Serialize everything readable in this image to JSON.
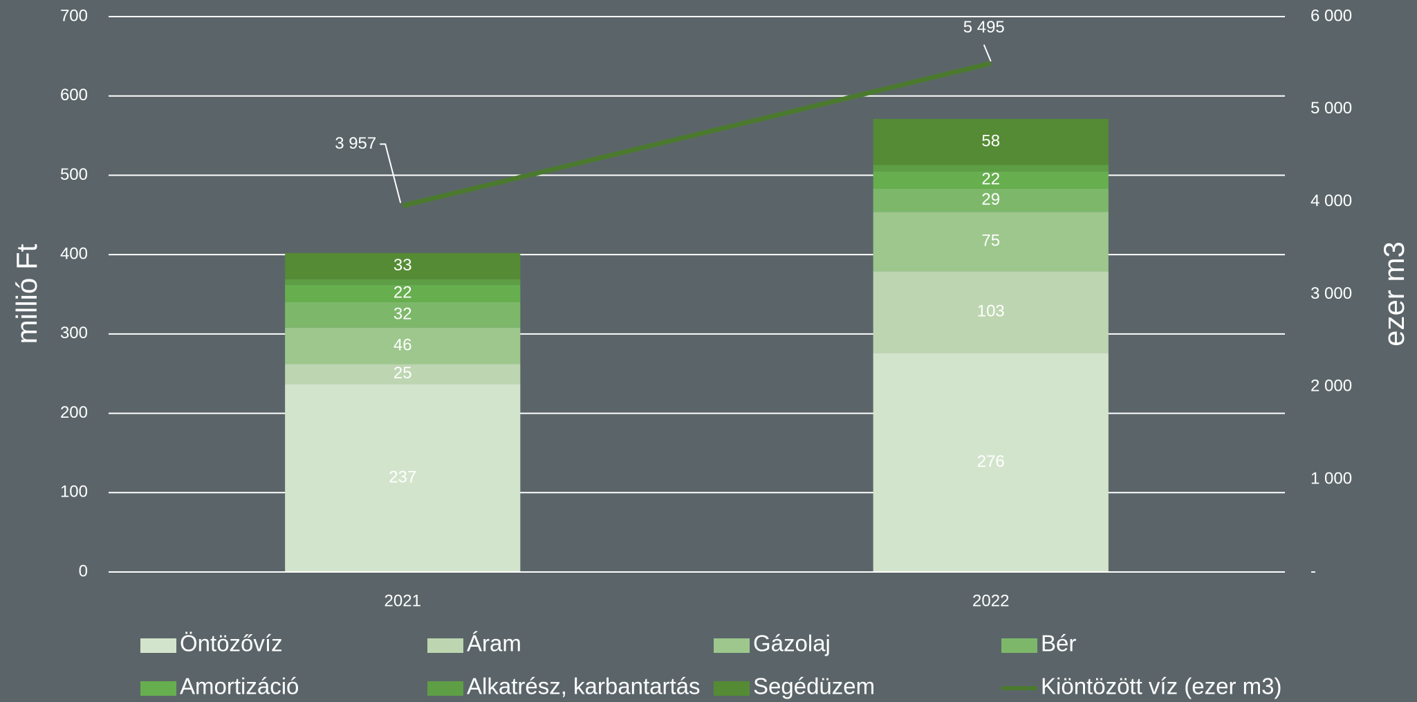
{
  "chart_data": {
    "type": "stacked_bar_line",
    "categories": [
      "2021",
      "2022"
    ],
    "y_label": "millió Ft",
    "y2_label": "ezer m3",
    "ylim": [
      0,
      700
    ],
    "yticks": [
      0,
      100,
      200,
      300,
      400,
      500,
      600,
      700
    ],
    "y2lim": [
      0,
      6000
    ],
    "y2ticks": [
      {
        "value": 0,
        "label": "-"
      },
      {
        "value": 1000,
        "label": "1 000"
      },
      {
        "value": 2000,
        "label": "2 000"
      },
      {
        "value": 3000,
        "label": "3 000"
      },
      {
        "value": 4000,
        "label": "4 000"
      },
      {
        "value": 5000,
        "label": "5 000"
      },
      {
        "value": 6000,
        "label": "6 000"
      }
    ],
    "grid": true,
    "legend": "bottom",
    "series": [
      {
        "name": "Öntözővíz",
        "color": "#d3e4cc",
        "values": [
          237,
          276
        ],
        "data_labels": true
      },
      {
        "name": "Áram",
        "color": "#bdd6b1",
        "values": [
          25,
          103
        ],
        "data_labels": true
      },
      {
        "name": "Gázolaj",
        "color": "#9dc78c",
        "values": [
          46,
          75
        ],
        "data_labels": true
      },
      {
        "name": "Bér",
        "color": "#7db86a",
        "values": [
          32,
          29
        ],
        "data_labels": true
      },
      {
        "name": "Amortizáció",
        "color": "#67ae4f",
        "values": [
          22,
          22
        ],
        "data_labels": true
      },
      {
        "name": "Alkatrész, karbantartás",
        "color": "#5e9e45",
        "values": [
          7,
          8
        ],
        "data_labels": false
      },
      {
        "name": "Segédüzem",
        "color": "#548b34",
        "values": [
          33,
          58
        ],
        "data_labels": true
      },
      {
        "name": "Kiöntözött víz (ezer m3)",
        "color": "#4b7a2f",
        "type": "line",
        "axis": "y2",
        "values": [
          3957,
          5495
        ],
        "value_labels": [
          "3 957",
          "5 495"
        ],
        "data_labels": true
      }
    ]
  }
}
